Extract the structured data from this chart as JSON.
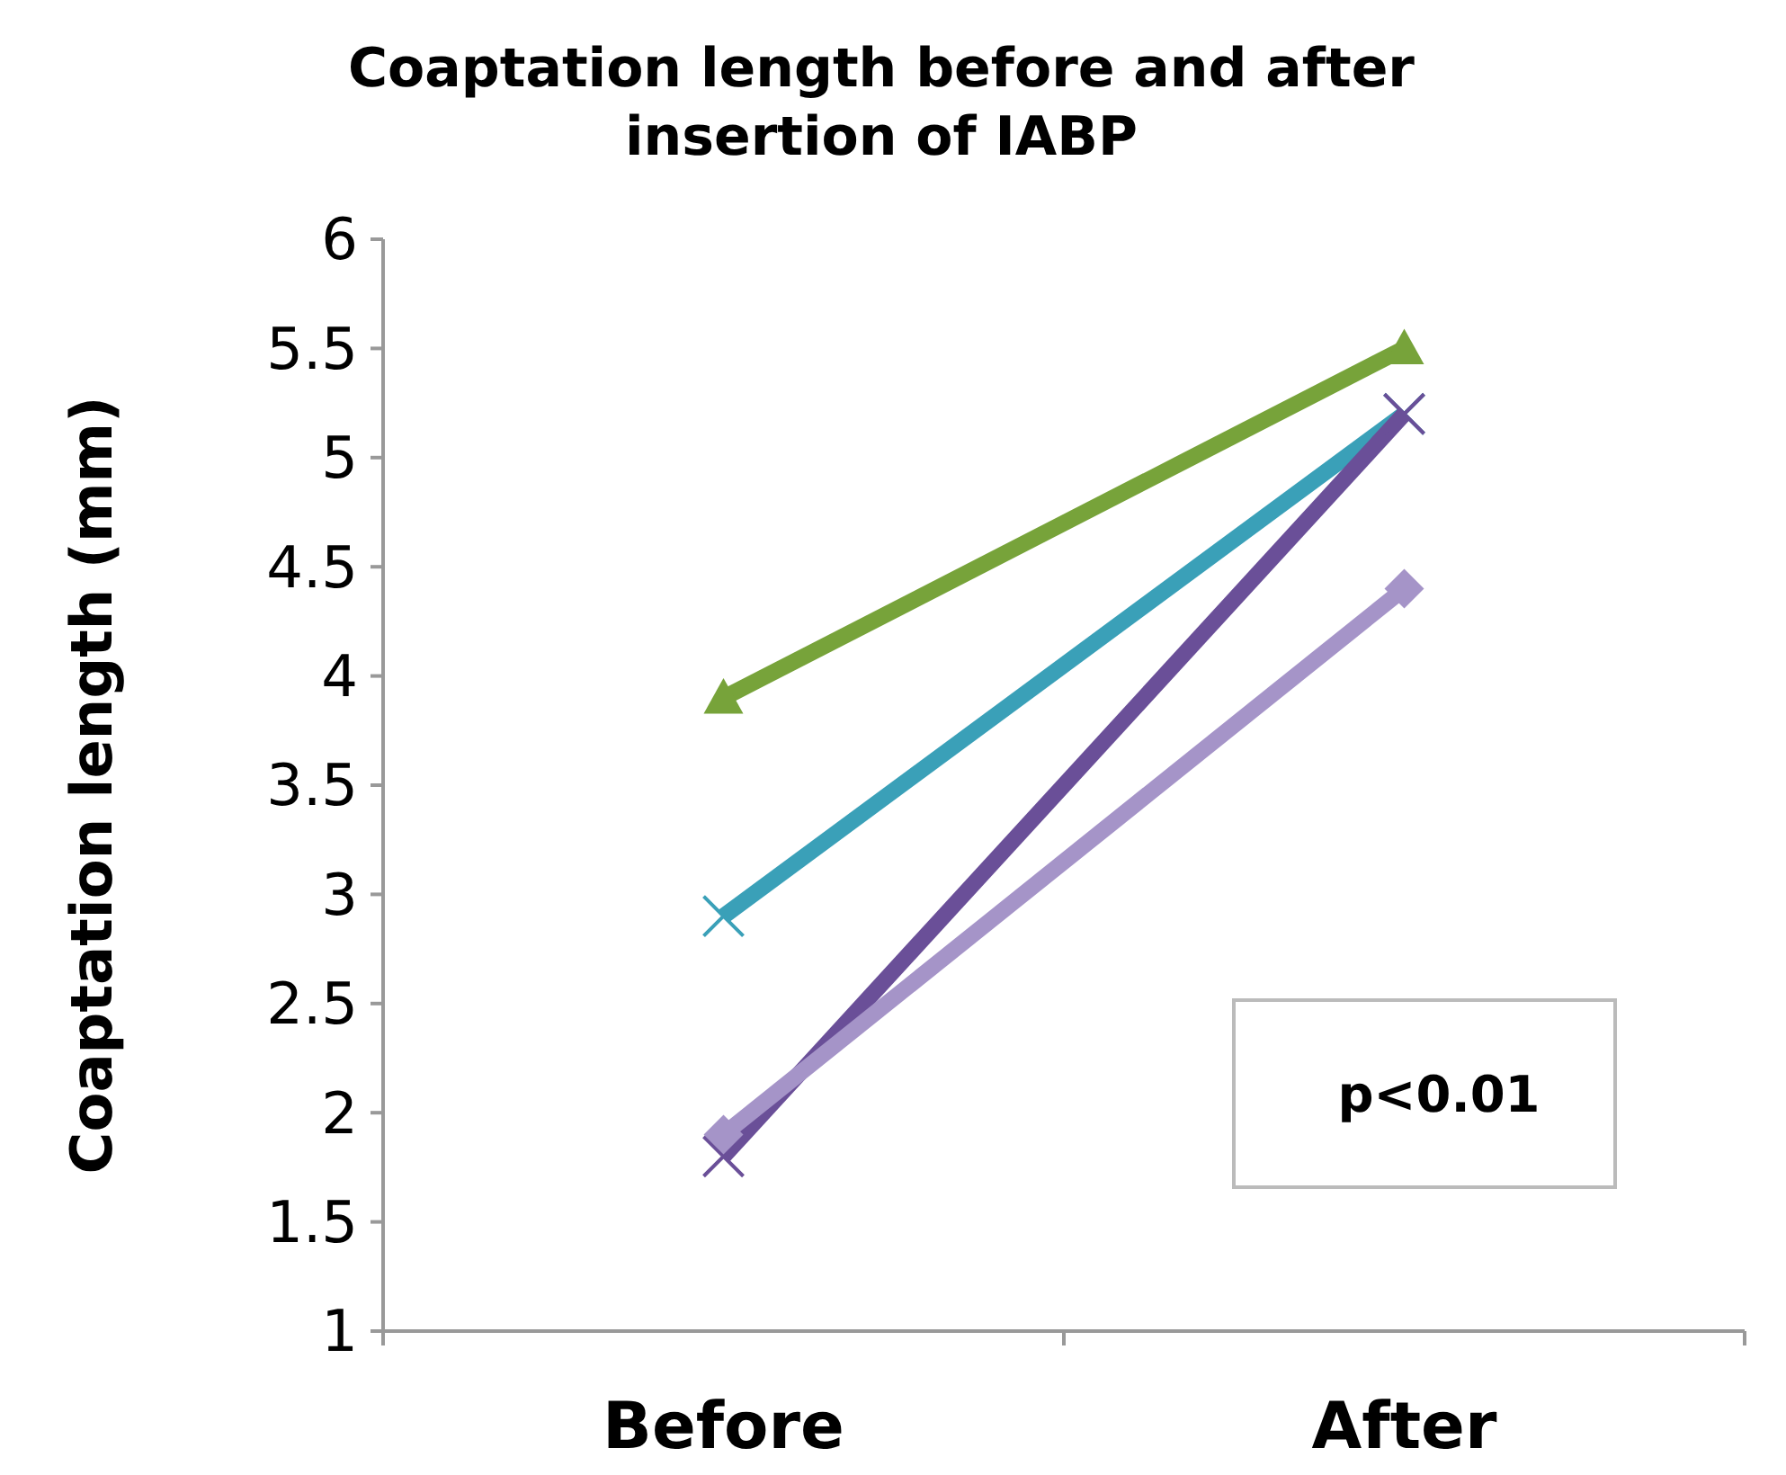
{
  "chart_data": {
    "type": "line",
    "title": "Coaptation length before and after insertion of IABP",
    "ylabel": "Coaptation length  (mm)",
    "categories": [
      "Before",
      "After"
    ],
    "ylim": [
      1,
      6
    ],
    "yticks": [
      1,
      1.5,
      2,
      2.5,
      3,
      3.5,
      4,
      4.5,
      5,
      5.5,
      6
    ],
    "grid": false,
    "series": [
      {
        "color": "#77a33a",
        "marker": "triangle",
        "values": [
          3.9,
          5.5
        ]
      },
      {
        "color": "#3aa0b8",
        "marker": "cross",
        "values": [
          2.9,
          5.2
        ]
      },
      {
        "color": "#6a4f98",
        "marker": "cross",
        "values": [
          1.8,
          5.2
        ]
      },
      {
        "color": "#a594c8",
        "marker": "diamond",
        "values": [
          1.9,
          4.4
        ]
      }
    ],
    "annotations": [
      "p<0.01"
    ]
  }
}
